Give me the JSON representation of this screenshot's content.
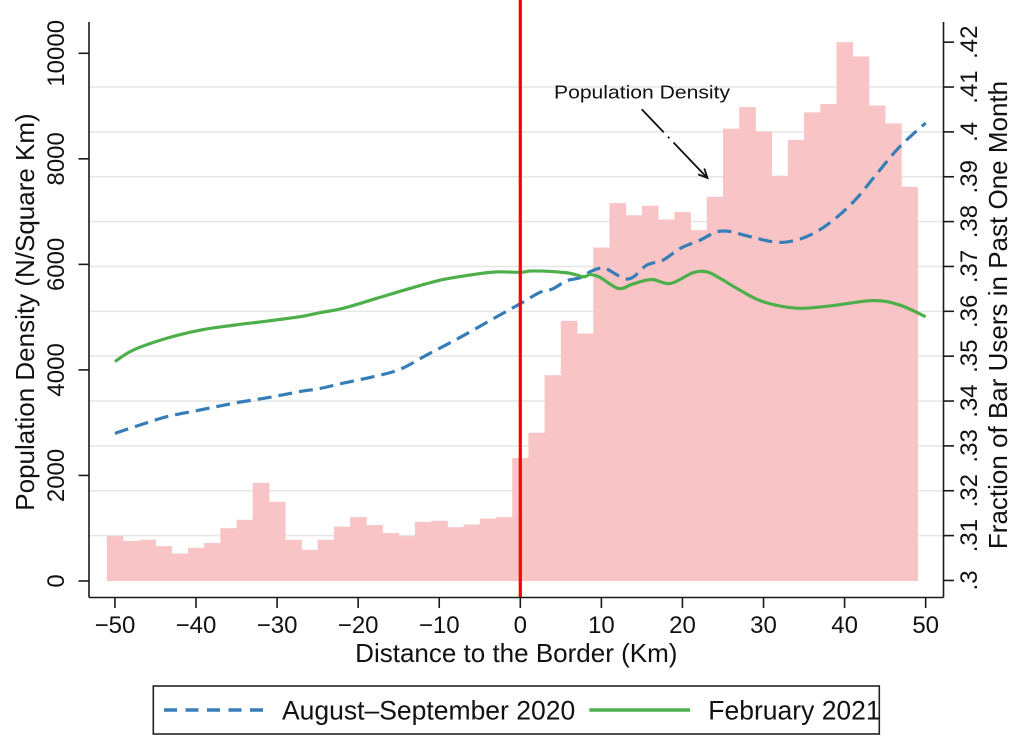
{
  "chart_data": {
    "type": "bar",
    "title": "",
    "xlabel": "Distance to the Border (Km)",
    "ylabel": "Population Density (N/Square Km)",
    "y2label": "Fraction of Bar Users in Past One Month",
    "xlim": [
      -53.2,
      52.2
    ],
    "ylim": [
      -313,
      10593
    ],
    "y2lim": [
      0.2962,
      0.4245
    ],
    "grid": true,
    "grid_axis": "right",
    "legend_position": "bottom",
    "xticks": [
      {
        "value": -50,
        "label": "−50"
      },
      {
        "value": -40,
        "label": "−40"
      },
      {
        "value": -30,
        "label": "−30"
      },
      {
        "value": -20,
        "label": "−20"
      },
      {
        "value": -10,
        "label": "−10"
      },
      {
        "value": 0,
        "label": "0"
      },
      {
        "value": 10,
        "label": "10"
      },
      {
        "value": 20,
        "label": "20"
      },
      {
        "value": 30,
        "label": "30"
      },
      {
        "value": 40,
        "label": "40"
      },
      {
        "value": 50,
        "label": "50"
      }
    ],
    "yticks": [
      {
        "value": 0,
        "label": "0"
      },
      {
        "value": 2000,
        "label": "2000"
      },
      {
        "value": 4000,
        "label": "4000"
      },
      {
        "value": 6000,
        "label": "6000"
      },
      {
        "value": 8000,
        "label": "8000"
      },
      {
        "value": 10000,
        "label": "10000"
      }
    ],
    "y2ticks": [
      {
        "value": 0.3,
        "label": ".3"
      },
      {
        "value": 0.31,
        "label": ".31"
      },
      {
        "value": 0.32,
        "label": ".32"
      },
      {
        "value": 0.33,
        "label": ".33"
      },
      {
        "value": 0.34,
        "label": ".34"
      },
      {
        "value": 0.35,
        "label": ".35"
      },
      {
        "value": 0.36,
        "label": ".36"
      },
      {
        "value": 0.37,
        "label": ".37"
      },
      {
        "value": 0.38,
        "label": ".38"
      },
      {
        "value": 0.39,
        "label": ".39"
      },
      {
        "value": 0.4,
        "label": ".4"
      },
      {
        "value": 0.41,
        "label": ".41"
      },
      {
        "value": 0.42,
        "label": ".42"
      }
    ],
    "reference_line": {
      "x": 0,
      "color": "#ff0000"
    },
    "bars": {
      "name": "Population Density",
      "axis": "left",
      "bin_width": 2,
      "color": "#f8c4c6",
      "x": [
        -50,
        -48,
        -46,
        -44,
        -42,
        -40,
        -38,
        -36,
        -34,
        -32,
        -30,
        -28,
        -26,
        -24,
        -22,
        -20,
        -18,
        -16,
        -14,
        -12,
        -10,
        -8,
        -6,
        -4,
        -2,
        0,
        2,
        4,
        6,
        8,
        10,
        12,
        14,
        16,
        18,
        20,
        22,
        24,
        26,
        28,
        30,
        32,
        34,
        36,
        38,
        40,
        42,
        44,
        46,
        48
      ],
      "values": [
        850,
        760,
        780,
        660,
        520,
        630,
        720,
        1000,
        1160,
        1860,
        1500,
        780,
        590,
        780,
        1030,
        1210,
        1060,
        910,
        850,
        1120,
        1140,
        1020,
        1070,
        1180,
        1210,
        2330,
        2810,
        3900,
        4930,
        4690,
        6320,
        7160,
        6930,
        7110,
        6850,
        6990,
        6650,
        7280,
        8570,
        8980,
        8520,
        7680,
        8360,
        8880,
        9040,
        10210,
        9940,
        9010,
        8670,
        7470
      ]
    },
    "series": [
      {
        "name": "August–September 2020",
        "axis": "right",
        "style": "dashed",
        "color": "#377eb8",
        "points": [
          [
            -50,
            0.3328
          ],
          [
            -47,
            0.3346
          ],
          [
            -43.6,
            0.3365
          ],
          [
            -39.5,
            0.338
          ],
          [
            -35.4,
            0.3395
          ],
          [
            -31,
            0.3408
          ],
          [
            -27.2,
            0.3421
          ],
          [
            -24.7,
            0.3428
          ],
          [
            -21.8,
            0.344
          ],
          [
            -17.7,
            0.3456
          ],
          [
            -14.8,
            0.3471
          ],
          [
            -11.5,
            0.3503
          ],
          [
            -7.4,
            0.3542
          ],
          [
            -3.3,
            0.3584
          ],
          [
            0,
            0.3617
          ],
          [
            2.4,
            0.3642
          ],
          [
            4,
            0.365
          ],
          [
            5.7,
            0.3668
          ],
          [
            7.4,
            0.3675
          ],
          [
            8.6,
            0.3688
          ],
          [
            9.8,
            0.3696
          ],
          [
            10.7,
            0.3694
          ],
          [
            12.7,
            0.3674
          ],
          [
            13.9,
            0.3676
          ],
          [
            15.6,
            0.3703
          ],
          [
            17.6,
            0.3714
          ],
          [
            19.7,
            0.374
          ],
          [
            22.2,
            0.3759
          ],
          [
            24.2,
            0.3777
          ],
          [
            25.9,
            0.3778
          ],
          [
            28,
            0.3768
          ],
          [
            31.6,
            0.3754
          ],
          [
            34.1,
            0.3759
          ],
          [
            36.5,
            0.3777
          ],
          [
            39,
            0.3809
          ],
          [
            41.5,
            0.3852
          ],
          [
            43.9,
            0.3905
          ],
          [
            46.8,
            0.3967
          ],
          [
            50,
            0.402
          ]
        ]
      },
      {
        "name": "February 2021",
        "axis": "right",
        "style": "solid",
        "color": "#4daf4a",
        "points": [
          [
            -50,
            0.3488
          ],
          [
            -47.7,
            0.3514
          ],
          [
            -43.6,
            0.354
          ],
          [
            -39.5,
            0.3558
          ],
          [
            -35.4,
            0.3569
          ],
          [
            -31.3,
            0.3578
          ],
          [
            -27.2,
            0.3588
          ],
          [
            -24.7,
            0.3597
          ],
          [
            -21.8,
            0.3607
          ],
          [
            -17.7,
            0.3629
          ],
          [
            -13.6,
            0.3651
          ],
          [
            -9.5,
            0.3671
          ],
          [
            -5.4,
            0.3683
          ],
          [
            -2.9,
            0.3688
          ],
          [
            0,
            0.3687
          ],
          [
            1.6,
            0.369
          ],
          [
            5.7,
            0.3686
          ],
          [
            7.8,
            0.3677
          ],
          [
            8.6,
            0.3682
          ],
          [
            9.8,
            0.3676
          ],
          [
            12.1,
            0.3651
          ],
          [
            13.9,
            0.3661
          ],
          [
            16.2,
            0.3671
          ],
          [
            18.5,
            0.3662
          ],
          [
            21.3,
            0.3686
          ],
          [
            23,
            0.3688
          ],
          [
            24.6,
            0.3674
          ],
          [
            27.1,
            0.3647
          ],
          [
            30,
            0.3621
          ],
          [
            34.1,
            0.3607
          ],
          [
            38.2,
            0.3612
          ],
          [
            43.5,
            0.3624
          ],
          [
            46.8,
            0.3614
          ],
          [
            50,
            0.3588
          ]
        ]
      }
    ],
    "annotation": {
      "text": "Population Density",
      "target": "bars"
    }
  }
}
